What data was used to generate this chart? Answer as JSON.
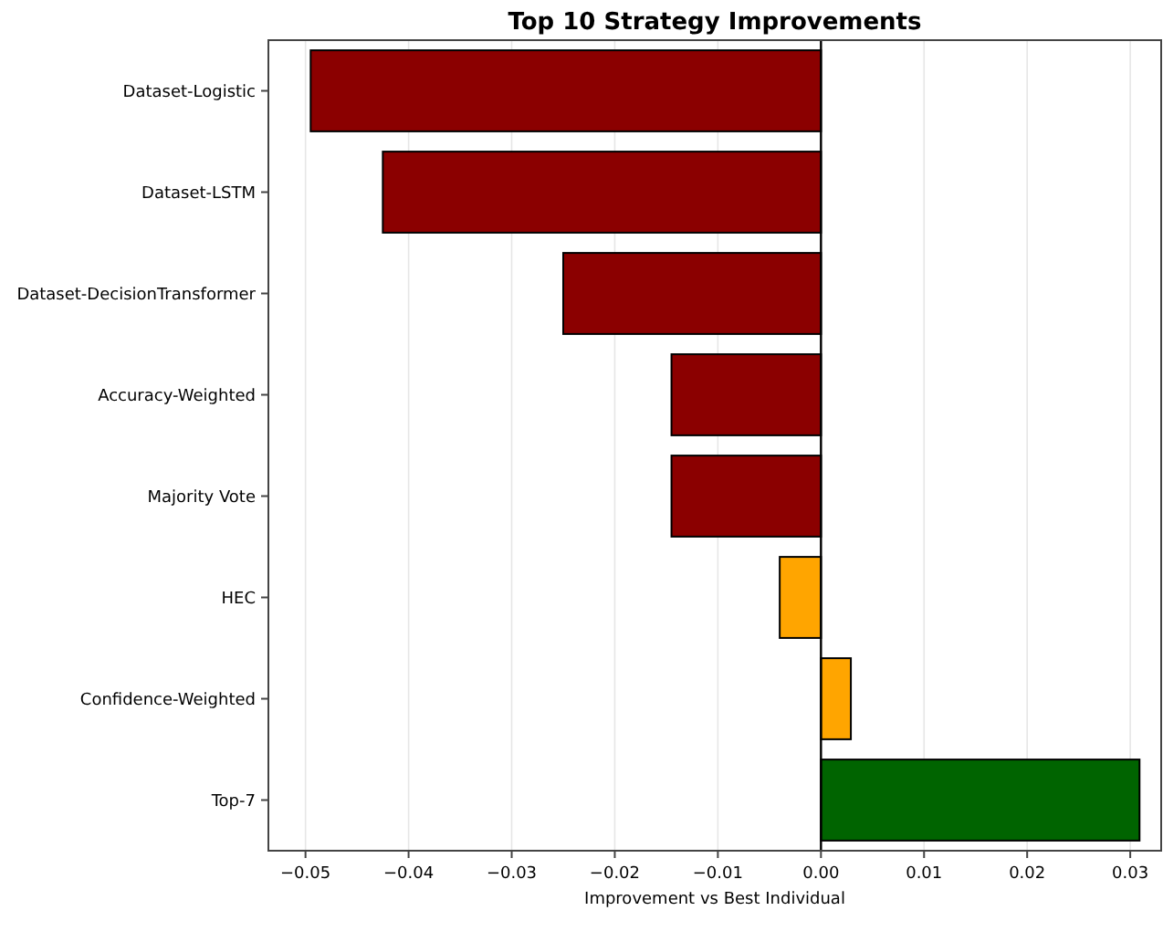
{
  "chart_data": {
    "type": "bar",
    "orientation": "horizontal",
    "title": "Top 10 Strategy Improvements",
    "xlabel": "Improvement vs Best Individual",
    "categories": [
      "Dataset-Logistic",
      "Dataset-LSTM",
      "Dataset-DecisionTransformer",
      "Accuracy-Weighted",
      "Majority Vote",
      "HEC",
      "Confidence-Weighted",
      "Top-7"
    ],
    "values": [
      -0.0495,
      -0.0425,
      -0.025,
      -0.0145,
      -0.0145,
      -0.004,
      0.0029,
      0.0309
    ],
    "colors": [
      "#8b0000",
      "#8b0000",
      "#8b0000",
      "#8b0000",
      "#8b0000",
      "#ffa500",
      "#ffa500",
      "#006400"
    ],
    "xlim": [
      -0.0536,
      0.033
    ],
    "xticks": [
      {
        "value": -0.05,
        "label": "−0.05"
      },
      {
        "value": -0.04,
        "label": "−0.04"
      },
      {
        "value": -0.03,
        "label": "−0.03"
      },
      {
        "value": -0.02,
        "label": "−0.02"
      },
      {
        "value": -0.01,
        "label": "−0.01"
      },
      {
        "value": 0,
        "label": "0.00"
      },
      {
        "value": 0.01,
        "label": "0.01"
      },
      {
        "value": 0.02,
        "label": "0.02"
      },
      {
        "value": 0.03,
        "label": "0.03"
      }
    ],
    "grid": "x",
    "ref_lines": [
      {
        "axis": "x",
        "value": 0,
        "color": "#000000"
      }
    ]
  }
}
